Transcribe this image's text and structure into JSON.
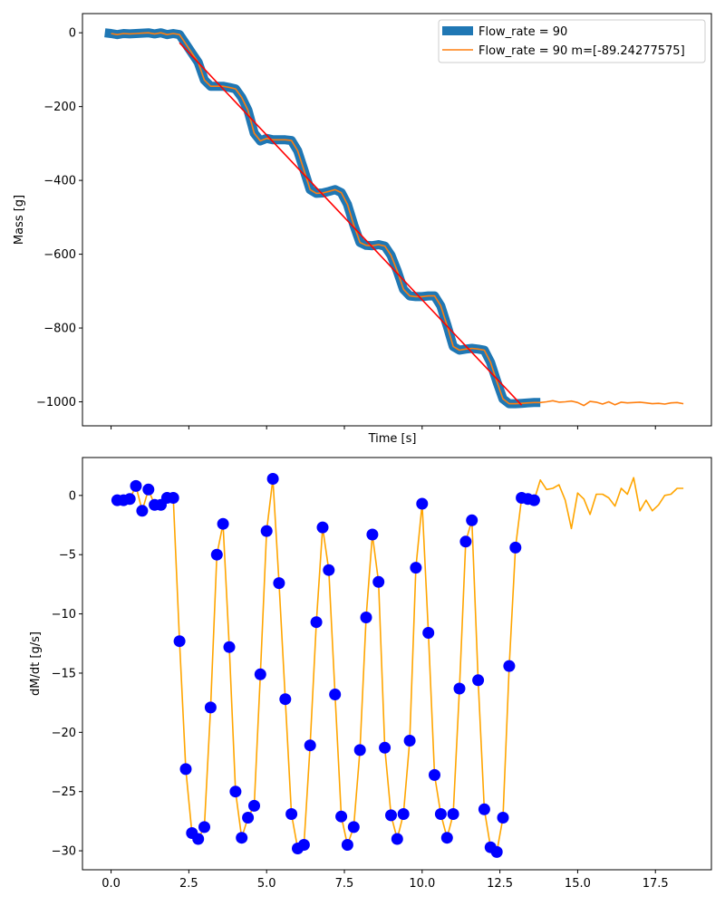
{
  "chart_data": [
    {
      "type": "line",
      "xlabel": "Time [s]",
      "ylabel": "Mass [g]",
      "xlim": [
        -0.92,
        19.3
      ],
      "ylim": [
        -1065,
        52
      ],
      "xticks": [
        0.0,
        2.5,
        5.0,
        7.5,
        10.0,
        12.5,
        15.0,
        17.5
      ],
      "yticks": [
        0,
        -200,
        -400,
        -600,
        -800,
        -1000
      ],
      "ytick_labels": [
        "0",
        "−200",
        "−400",
        "−600",
        "−800",
        "−1000"
      ],
      "show_xtick_labels": false,
      "legend_position": "upper right",
      "colors": {
        "thick": "#1f77b4",
        "thin": "#ff7f0e",
        "fit": "#ff0000"
      },
      "series": [
        {
          "name": "Flow_rate = 90",
          "style": "thick",
          "x": [
            -0.2,
            0.0,
            0.2,
            0.4,
            0.6,
            0.8,
            1.0,
            1.2,
            1.4,
            1.6,
            1.8,
            2.0,
            2.2,
            2.4,
            2.6,
            2.8,
            3.0,
            3.2,
            3.4,
            3.6,
            3.8,
            4.0,
            4.2,
            4.4,
            4.6,
            4.8,
            5.0,
            5.2,
            5.4,
            5.6,
            5.8,
            6.0,
            6.2,
            6.4,
            6.6,
            6.8,
            7.0,
            7.2,
            7.4,
            7.6,
            7.8,
            8.0,
            8.2,
            8.4,
            8.6,
            8.8,
            9.0,
            9.2,
            9.4,
            9.6,
            9.8,
            10.0,
            10.2,
            10.4,
            10.6,
            10.8,
            11.0,
            11.2,
            11.4,
            11.6,
            11.8,
            12.0,
            12.2,
            12.4,
            12.6,
            12.8,
            13.0,
            13.2,
            13.4,
            13.6,
            13.8
          ],
          "values": [
            0,
            -2,
            -5,
            -2,
            -3,
            -2,
            -1,
            0,
            -3,
            0,
            -5,
            -2,
            -5,
            -30,
            -55,
            -80,
            -128,
            -145,
            -145,
            -145,
            -148,
            -152,
            -175,
            -210,
            -272,
            -293,
            -286,
            -290,
            -290,
            -290,
            -292,
            -320,
            -372,
            -425,
            -435,
            -434,
            -430,
            -425,
            -433,
            -465,
            -520,
            -568,
            -576,
            -577,
            -574,
            -578,
            -603,
            -645,
            -695,
            -713,
            -715,
            -715,
            -713,
            -713,
            -740,
            -793,
            -850,
            -860,
            -857,
            -855,
            -857,
            -860,
            -893,
            -945,
            -992,
            -1005,
            -1005,
            -1004,
            -1003,
            -1002,
            -1002
          ]
        },
        {
          "name": "Flow_rate = 90 m=[-89.24277575]",
          "style": "thin",
          "x": [
            0.0,
            0.2,
            0.4,
            0.6,
            0.8,
            1.0,
            1.2,
            1.4,
            1.6,
            1.8,
            2.0,
            2.2,
            2.4,
            2.6,
            2.8,
            3.0,
            3.2,
            3.4,
            3.6,
            3.8,
            4.0,
            4.2,
            4.4,
            4.6,
            4.8,
            5.0,
            5.2,
            5.4,
            5.6,
            5.8,
            6.0,
            6.2,
            6.4,
            6.6,
            6.8,
            7.0,
            7.2,
            7.4,
            7.6,
            7.8,
            8.0,
            8.2,
            8.4,
            8.6,
            8.8,
            9.0,
            9.2,
            9.4,
            9.6,
            9.8,
            10.0,
            10.2,
            10.4,
            10.6,
            10.8,
            11.0,
            11.2,
            11.4,
            11.6,
            11.8,
            12.0,
            12.2,
            12.4,
            12.6,
            12.8,
            13.0,
            13.2,
            13.4,
            13.6,
            13.8,
            14.0,
            14.2,
            14.4,
            14.6,
            14.8,
            15.0,
            15.2,
            15.4,
            15.6,
            15.8,
            16.0,
            16.2,
            16.4,
            16.6,
            16.8,
            17.0,
            17.2,
            17.4,
            17.6,
            17.8,
            18.0,
            18.2,
            18.4
          ],
          "values": [
            -2,
            -5,
            -2,
            -3,
            -2,
            -1,
            0,
            -3,
            0,
            -5,
            -2,
            -5,
            -30,
            -55,
            -80,
            -128,
            -145,
            -145,
            -145,
            -148,
            -152,
            -175,
            -210,
            -272,
            -293,
            -286,
            -290,
            -290,
            -290,
            -292,
            -320,
            -372,
            -425,
            -435,
            -434,
            -430,
            -425,
            -433,
            -465,
            -520,
            -568,
            -576,
            -577,
            -574,
            -578,
            -603,
            -645,
            -695,
            -713,
            -715,
            -715,
            -713,
            -713,
            -740,
            -793,
            -850,
            -860,
            -857,
            -855,
            -857,
            -860,
            -893,
            -945,
            -992,
            -1005,
            -1005,
            -1004,
            -1003,
            -1002,
            -1002,
            -1000,
            -997,
            -1001,
            -1000,
            -998,
            -1002,
            -1010,
            -999,
            -1001,
            -1006,
            -1000,
            -1008,
            -1001,
            -1003,
            -1002,
            -1001,
            -1003,
            -1005,
            -1004,
            -1006,
            -1003,
            -1002,
            -1005
          ]
        },
        {
          "name": "",
          "style": "fit",
          "x": [
            2.2,
            13.2
          ],
          "values": [
            -27,
            -1009
          ]
        }
      ]
    },
    {
      "type": "line",
      "xlabel": "",
      "ylabel": "dM/dt [g/s]",
      "xlim": [
        -0.92,
        19.3
      ],
      "ylim": [
        -31.6,
        3.2
      ],
      "xticks": [
        0.0,
        2.5,
        5.0,
        7.5,
        10.0,
        12.5,
        15.0,
        17.5
      ],
      "xtick_labels": [
        "0.0",
        "2.5",
        "5.0",
        "7.5",
        "10.0",
        "12.5",
        "15.0",
        "17.5"
      ],
      "yticks": [
        0,
        -5,
        -10,
        -15,
        -20,
        -25,
        -30
      ],
      "ytick_labels": [
        "0",
        "−5",
        "−10",
        "−15",
        "−20",
        "−25",
        "−30"
      ],
      "colors": {
        "line": "#ffa500",
        "points": "#0000ff"
      },
      "series": [
        {
          "name": "",
          "style": "line",
          "x": [
            0.2,
            0.4,
            0.6,
            0.8,
            1.0,
            1.2,
            1.4,
            1.6,
            1.8,
            2.0,
            2.2,
            2.4,
            2.6,
            2.8,
            3.0,
            3.2,
            3.4,
            3.6,
            3.8,
            4.0,
            4.2,
            4.4,
            4.6,
            4.8,
            5.0,
            5.2,
            5.4,
            5.6,
            5.8,
            6.0,
            6.2,
            6.4,
            6.6,
            6.8,
            7.0,
            7.2,
            7.4,
            7.6,
            7.8,
            8.0,
            8.2,
            8.4,
            8.6,
            8.8,
            9.0,
            9.2,
            9.4,
            9.6,
            9.8,
            10.0,
            10.2,
            10.4,
            10.6,
            10.8,
            11.0,
            11.2,
            11.4,
            11.6,
            11.8,
            12.0,
            12.2,
            12.4,
            12.6,
            12.8,
            13.0,
            13.2,
            13.4,
            13.6,
            13.8,
            14.0,
            14.2,
            14.4,
            14.6,
            14.8,
            15.0,
            15.2,
            15.4,
            15.6,
            15.8,
            16.0,
            16.2,
            16.4,
            16.6,
            16.8,
            17.0,
            17.2,
            17.4,
            17.6,
            17.8,
            18.0,
            18.2,
            18.4
          ],
          "values": [
            -0.4,
            -0.4,
            -0.3,
            0.8,
            -1.3,
            0.5,
            -0.8,
            -0.8,
            -0.2,
            -0.2,
            -12.3,
            -23.1,
            -28.5,
            -29.0,
            -28.0,
            -17.9,
            -5.0,
            -2.4,
            -12.8,
            -25.0,
            -28.9,
            -27.2,
            -26.2,
            -15.1,
            -3.0,
            1.4,
            -7.4,
            -17.2,
            -26.9,
            -29.8,
            -29.5,
            -21.1,
            -10.7,
            -2.7,
            -6.3,
            -16.8,
            -27.1,
            -29.5,
            -28.0,
            -21.5,
            -10.3,
            -3.3,
            -7.3,
            -21.3,
            -27.0,
            -29.0,
            -26.9,
            -20.7,
            -6.1,
            -0.7,
            -11.6,
            -23.6,
            -26.9,
            -28.9,
            -26.9,
            -16.3,
            -3.9,
            -2.1,
            -15.6,
            -26.5,
            -29.7,
            -30.1,
            -27.2,
            -14.4,
            -4.4,
            -0.2,
            -0.3,
            -0.4,
            1.3,
            0.5,
            0.6,
            0.9,
            -0.4,
            -2.8,
            0.2,
            -0.3,
            -1.6,
            0.1,
            0.1,
            -0.2,
            -0.9,
            0.6,
            0.1,
            1.5,
            -1.3,
            -0.4,
            -1.3,
            -0.8,
            0.0,
            0.1,
            0.6,
            0.6
          ]
        },
        {
          "name": "",
          "style": "points",
          "x": [
            0.2,
            0.4,
            0.6,
            0.8,
            1.0,
            1.2,
            1.4,
            1.6,
            1.8,
            2.0,
            2.2,
            2.4,
            2.6,
            2.8,
            3.0,
            3.2,
            3.4,
            3.6,
            3.8,
            4.0,
            4.2,
            4.4,
            4.6,
            4.8,
            5.0,
            5.2,
            5.4,
            5.6,
            5.8,
            6.0,
            6.2,
            6.4,
            6.6,
            6.8,
            7.0,
            7.2,
            7.4,
            7.6,
            7.8,
            8.0,
            8.2,
            8.4,
            8.6,
            8.8,
            9.0,
            9.2,
            9.4,
            9.6,
            9.8,
            10.0,
            10.2,
            10.4,
            10.6,
            10.8,
            11.0,
            11.2,
            11.4,
            11.6,
            11.8,
            12.0,
            12.2,
            12.4,
            12.6,
            12.8,
            13.0,
            13.2,
            13.4,
            13.6
          ],
          "values": [
            -0.4,
            -0.4,
            -0.3,
            0.8,
            -1.3,
            0.5,
            -0.8,
            -0.8,
            -0.2,
            -0.2,
            -12.3,
            -23.1,
            -28.5,
            -29.0,
            -28.0,
            -17.9,
            -5.0,
            -2.4,
            -12.8,
            -25.0,
            -28.9,
            -27.2,
            -26.2,
            -15.1,
            -3.0,
            1.4,
            -7.4,
            -17.2,
            -26.9,
            -29.8,
            -29.5,
            -21.1,
            -10.7,
            -2.7,
            -6.3,
            -16.8,
            -27.1,
            -29.5,
            -28.0,
            -21.5,
            -10.3,
            -3.3,
            -7.3,
            -21.3,
            -27.0,
            -29.0,
            -26.9,
            -20.7,
            -6.1,
            -0.7,
            -11.6,
            -23.6,
            -26.9,
            -28.9,
            -26.9,
            -16.3,
            -3.9,
            -2.1,
            -15.6,
            -26.5,
            -29.7,
            -30.1,
            -27.2,
            -14.4,
            -4.4,
            -0.2,
            -0.3,
            -0.4
          ]
        }
      ]
    }
  ]
}
